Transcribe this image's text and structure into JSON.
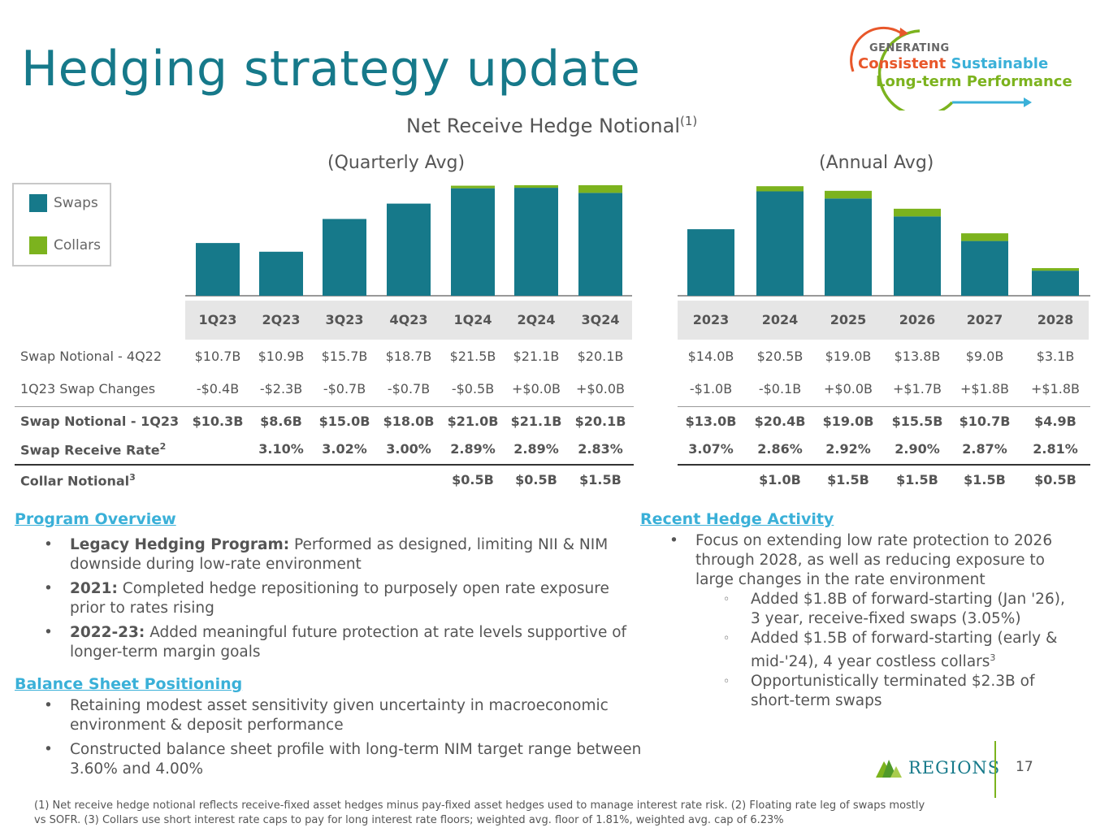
{
  "title": "Hedging strategy update",
  "logo": {
    "line1": "GENERATING",
    "line2a": "Consistent",
    "line2b": "Sustainable",
    "line3": "Long-term Performance",
    "icon": "circular-arrows-icon"
  },
  "chart_title": "Net Receive Hedge Notional",
  "chart_title_sup": "(1)",
  "quarterly_subtitle": "(Quarterly Avg)",
  "annual_subtitle": "(Annual Avg)",
  "colors": {
    "swaps": "#16798a",
    "collars": "#7cb31e"
  },
  "chart_data": [
    {
      "type": "bar",
      "stacked": true,
      "title": "(Quarterly Avg)",
      "categories": [
        "1Q23",
        "2Q23",
        "3Q23",
        "4Q23",
        "1Q24",
        "2Q24",
        "3Q24"
      ],
      "series": [
        {
          "name": "Swaps",
          "values": [
            10.3,
            8.6,
            15.0,
            18.0,
            21.0,
            21.1,
            20.1
          ]
        },
        {
          "name": "Collars",
          "values": [
            0,
            0,
            0,
            0,
            0.5,
            0.5,
            1.5
          ]
        }
      ],
      "legend": "left"
    },
    {
      "type": "bar",
      "stacked": true,
      "title": "(Annual Avg)",
      "categories": [
        "2023",
        "2024",
        "2025",
        "2026",
        "2027",
        "2028"
      ],
      "series": [
        {
          "name": "Swaps",
          "values": [
            13.0,
            20.4,
            19.0,
            15.5,
            10.7,
            4.9
          ]
        },
        {
          "name": "Collars",
          "values": [
            0,
            1.0,
            1.5,
            1.5,
            1.5,
            0.5
          ]
        }
      ]
    }
  ],
  "legend": [
    {
      "label": "Swaps",
      "color": "#16798a"
    },
    {
      "label": "Collars",
      "color": "#7cb31e"
    }
  ],
  "table": {
    "quarter_headers": [
      "1Q23",
      "2Q23",
      "3Q23",
      "4Q23",
      "1Q24",
      "2Q24",
      "3Q24"
    ],
    "year_headers": [
      "2023",
      "2024",
      "2025",
      "2026",
      "2027",
      "2028"
    ],
    "rows": [
      {
        "label": "Swap Notional - 4Q22",
        "sup": "",
        "bold": false,
        "q": [
          "$10.7B",
          "$10.9B",
          "$15.7B",
          "$18.7B",
          "$21.5B",
          "$21.1B",
          "$20.1B"
        ],
        "a": [
          "$14.0B",
          "$20.5B",
          "$19.0B",
          "$13.8B",
          "$9.0B",
          "$3.1B"
        ]
      },
      {
        "label": "1Q23 Swap Changes",
        "sup": "",
        "bold": false,
        "q": [
          "-$0.4B",
          "-$2.3B",
          "-$0.7B",
          "-$0.7B",
          "-$0.5B",
          "+$0.0B",
          "+$0.0B"
        ],
        "a": [
          "-$1.0B",
          "-$0.1B",
          "+$0.0B",
          "+$1.7B",
          "+$1.8B",
          "+$1.8B"
        ]
      },
      {
        "label": "Swap Notional - 1Q23",
        "sup": "",
        "bold": true,
        "q": [
          "$10.3B",
          "$8.6B",
          "$15.0B",
          "$18.0B",
          "$21.0B",
          "$21.1B",
          "$20.1B"
        ],
        "a": [
          "$13.0B",
          "$20.4B",
          "$19.0B",
          "$15.5B",
          "$10.7B",
          "$4.9B"
        ]
      },
      {
        "label": "Swap Receive Rate",
        "sup": "2",
        "bold": true,
        "q": [
          "",
          "3.10%",
          "3.02%",
          "3.00%",
          "2.89%",
          "2.89%",
          "2.83%"
        ],
        "a": [
          "3.07%",
          "2.86%",
          "2.92%",
          "2.90%",
          "2.87%",
          "2.81%"
        ]
      },
      {
        "label": "Collar Notional",
        "sup": "3",
        "bold": true,
        "q": [
          "",
          "",
          "",
          "",
          "$0.5B",
          "$0.5B",
          "$1.5B"
        ],
        "a": [
          "",
          "$1.0B",
          "$1.5B",
          "$1.5B",
          "$1.5B",
          "$0.5B"
        ]
      }
    ]
  },
  "program_overview": {
    "heading": "Program Overview",
    "bullets": [
      {
        "bold": "Legacy Hedging Program:",
        "text": " Performed as designed, limiting NII & NIM downside during low-rate environment"
      },
      {
        "bold": "2021:",
        "text": " Completed hedge repositioning to purposely open rate exposure prior to rates rising"
      },
      {
        "bold": "2022-23:",
        "text": " Added meaningful future protection at rate levels supportive of longer-term margin goals"
      }
    ]
  },
  "balance_sheet": {
    "heading": "Balance Sheet Positioning",
    "bullets": [
      {
        "text": "Retaining modest asset sensitivity given uncertainty in macroeconomic environment & deposit performance"
      },
      {
        "text": "Constructed balance sheet profile with long-term NIM target range between 3.60% and 4.00%"
      }
    ]
  },
  "recent_activity": {
    "heading": "Recent Hedge Activity",
    "bullet": "Focus on extending low rate protection to 2026 through 2028, as well as reducing exposure to large changes in the rate environment",
    "sub_bullets": [
      {
        "text": "Added $1.8B of forward-starting (Jan '26), 3 year, receive-fixed swaps (3.05%)",
        "sup": ""
      },
      {
        "text": "Added $1.5B of forward-starting (early & mid-'24), 4 year costless collars",
        "sup": "3"
      },
      {
        "text": "Opportunistically terminated $2.3B of short-term swaps",
        "sup": ""
      }
    ]
  },
  "brand": {
    "name": "REGIONS",
    "icon": "regions-pyramid-icon"
  },
  "page_number": "17",
  "footnote": "(1) Net receive hedge notional reflects receive-fixed asset hedges minus pay-fixed asset hedges used to manage interest rate risk. (2) Floating rate leg of swaps mostly vs SOFR. (3) Collars use short interest rate caps to pay for long interest rate floors; weighted avg. floor of 1.81%, weighted avg. cap of 6.23%"
}
